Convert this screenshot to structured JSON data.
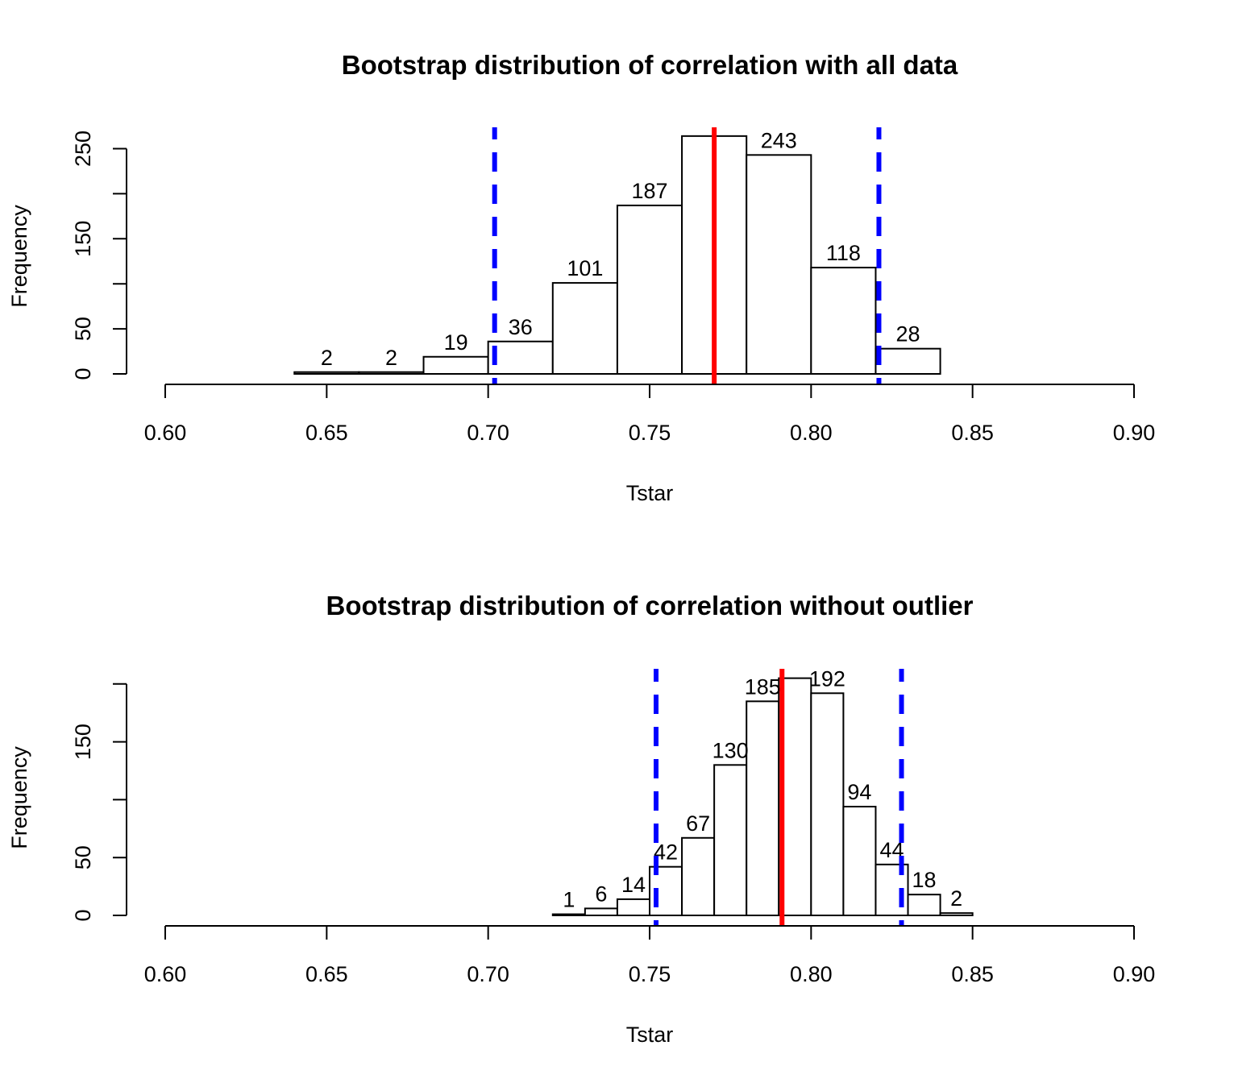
{
  "chart_data": [
    {
      "type": "bar",
      "title": "Bootstrap distribution of correlation with all data",
      "xlabel": "Tstar",
      "ylabel": "Frequency",
      "xlim": [
        0.6,
        0.9
      ],
      "ylim": [
        0,
        270
      ],
      "xticks": [
        "0.60",
        "0.65",
        "0.70",
        "0.75",
        "0.80",
        "0.85",
        "0.90"
      ],
      "yticks": [
        "0",
        "50",
        "150",
        "250"
      ],
      "grid": false,
      "bins": [
        {
          "x0": 0.64,
          "x1": 0.66,
          "count": 2
        },
        {
          "x0": 0.66,
          "x1": 0.68,
          "count": 2
        },
        {
          "x0": 0.68,
          "x1": 0.7,
          "count": 19
        },
        {
          "x0": 0.7,
          "x1": 0.72,
          "count": 36
        },
        {
          "x0": 0.72,
          "x1": 0.74,
          "count": 101
        },
        {
          "x0": 0.74,
          "x1": 0.76,
          "count": 187
        },
        {
          "x0": 0.76,
          "x1": 0.78,
          "count": 264
        },
        {
          "x0": 0.78,
          "x1": 0.8,
          "count": 243
        },
        {
          "x0": 0.8,
          "x1": 0.82,
          "count": 118
        },
        {
          "x0": 0.82,
          "x1": 0.84,
          "count": 28
        }
      ],
      "bar_labels": [
        "2",
        "2",
        "19",
        "36",
        "101",
        "187",
        "",
        "243",
        "118",
        "28"
      ],
      "observed_line": {
        "x": 0.77,
        "color": "#ff0000"
      },
      "ci_lines": {
        "x": [
          0.702,
          0.821
        ],
        "color": "#0000ff"
      }
    },
    {
      "type": "bar",
      "title": "Bootstrap distribution of correlation without outlier",
      "xlabel": "Tstar",
      "ylabel": "Frequency",
      "xlim": [
        0.6,
        0.9
      ],
      "ylim": [
        0,
        205
      ],
      "xticks": [
        "0.60",
        "0.65",
        "0.70",
        "0.75",
        "0.80",
        "0.85",
        "0.90"
      ],
      "yticks": [
        "0",
        "50",
        "150"
      ],
      "grid": false,
      "bins": [
        {
          "x0": 0.72,
          "x1": 0.73,
          "count": 1
        },
        {
          "x0": 0.73,
          "x1": 0.74,
          "count": 6
        },
        {
          "x0": 0.74,
          "x1": 0.75,
          "count": 14
        },
        {
          "x0": 0.75,
          "x1": 0.76,
          "count": 42
        },
        {
          "x0": 0.76,
          "x1": 0.77,
          "count": 67
        },
        {
          "x0": 0.77,
          "x1": 0.78,
          "count": 130
        },
        {
          "x0": 0.78,
          "x1": 0.79,
          "count": 185
        },
        {
          "x0": 0.79,
          "x1": 0.8,
          "count": 205
        },
        {
          "x0": 0.8,
          "x1": 0.81,
          "count": 192
        },
        {
          "x0": 0.81,
          "x1": 0.82,
          "count": 94
        },
        {
          "x0": 0.82,
          "x1": 0.83,
          "count": 44
        },
        {
          "x0": 0.83,
          "x1": 0.84,
          "count": 18
        },
        {
          "x0": 0.84,
          "x1": 0.85,
          "count": 2
        }
      ],
      "bar_labels": [
        "1",
        "6",
        "14",
        "42",
        "67",
        "130",
        "185",
        "",
        "192",
        "94",
        "44",
        "18",
        "2"
      ],
      "observed_line": {
        "x": 0.791,
        "color": "#ff0000"
      },
      "ci_lines": {
        "x": [
          0.752,
          0.828
        ],
        "color": "#0000ff"
      }
    }
  ]
}
